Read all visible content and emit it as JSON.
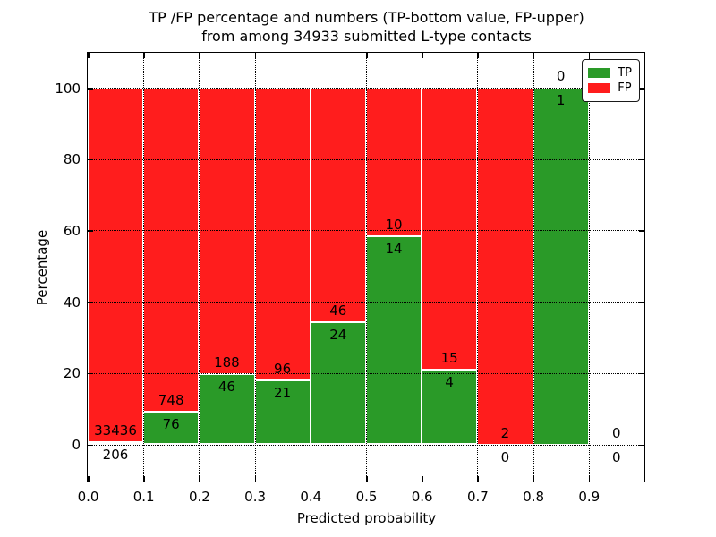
{
  "figure": {
    "title_line1": "TP /FP percentage and numbers (TP-bottom value, FP-upper)",
    "title_line2": "from among 34933 submitted L-type contacts"
  },
  "axes": {
    "x_label": "Predicted probability",
    "y_label": "Percentage",
    "x_tick_labels": [
      "0.0",
      "0.1",
      "0.2",
      "0.3",
      "0.4",
      "0.5",
      "0.6",
      "0.7",
      "0.8",
      "0.9"
    ],
    "y_tick_labels": [
      "0",
      "20",
      "40",
      "60",
      "80",
      "100"
    ],
    "y_tick_values": [
      0,
      20,
      40,
      60,
      80,
      100
    ]
  },
  "legend": {
    "entries": [
      {
        "label": "TP",
        "color": "#2a9a28"
      },
      {
        "label": "FP",
        "color": "#ff1d1d"
      }
    ]
  },
  "chart_data": {
    "type": "bar",
    "stacked": true,
    "normalized": "each bin scaled to 100%",
    "title": "TP /FP percentage and numbers (TP-bottom value, FP-upper) from among 34933 submitted L-type contacts",
    "xlabel": "Predicted probability",
    "ylabel": "Percentage",
    "x_bin_edges": [
      0.0,
      0.1,
      0.2,
      0.3,
      0.4,
      0.5,
      0.6,
      0.7,
      0.8,
      0.9,
      1.0
    ],
    "ylim_ticks": [
      0,
      100
    ],
    "grid": true,
    "legend_position": "upper right",
    "series": [
      {
        "name": "TP",
        "color": "#2a9a28",
        "counts": [
          206,
          76,
          46,
          21,
          24,
          14,
          4,
          0,
          1,
          0
        ]
      },
      {
        "name": "FP",
        "color": "#ff1d1d",
        "counts": [
          33436,
          748,
          188,
          96,
          46,
          10,
          15,
          2,
          0,
          0
        ]
      }
    ]
  }
}
